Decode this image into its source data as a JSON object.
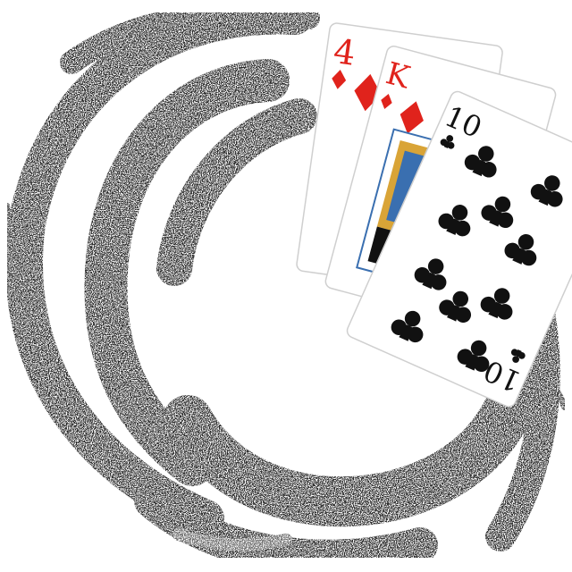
{
  "colors": {
    "background": "#ffffff",
    "swirl_dark": "#2b2b2b",
    "swirl_mid": "#6a6a6a",
    "card_face": "#ffffff",
    "card_edge": "#cfcfcf",
    "red_suit": "#e0231c",
    "black_suit": "#111111",
    "face_blue": "#3a6fb0",
    "face_gold": "#d9a437"
  },
  "cards": [
    {
      "rank": "4",
      "suit": "diamonds",
      "suit_icon": "diamond-icon"
    },
    {
      "rank": "K",
      "suit": "diamonds",
      "suit_icon": "diamond-icon"
    },
    {
      "rank": "10",
      "suit": "clubs",
      "suit_icon": "club-icon"
    }
  ]
}
